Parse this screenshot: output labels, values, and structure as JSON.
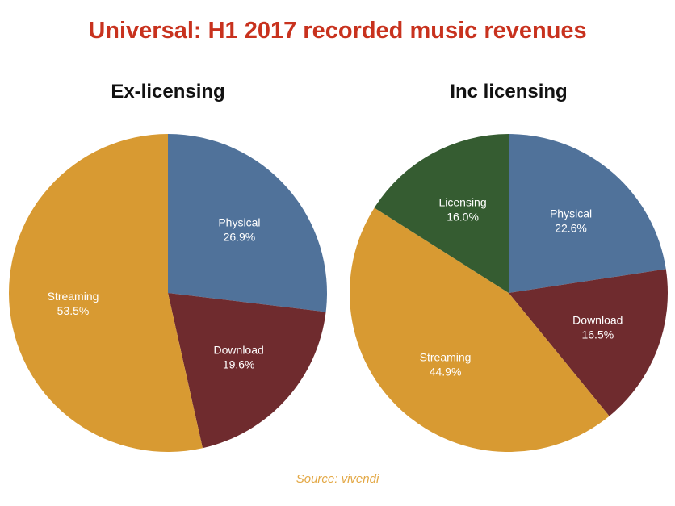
{
  "title": "Universal: H1 2017 recorded music revenues",
  "source": "Source: vivendi",
  "colors": {
    "title": "#c8321e",
    "source": "#e3a845",
    "Physical": "#50729a",
    "Download": "#6f2b2e",
    "Streaming": "#d89a32",
    "Licensing": "#355c31"
  },
  "chart_data": [
    {
      "type": "pie",
      "title": "Ex-licensing",
      "slices": [
        {
          "label": "Physical",
          "value": 26.9,
          "display": "26.9%"
        },
        {
          "label": "Download",
          "value": 19.6,
          "display": "19.6%"
        },
        {
          "label": "Streaming",
          "value": 53.5,
          "display": "53.5%"
        }
      ]
    },
    {
      "type": "pie",
      "title": "Inc licensing",
      "slices": [
        {
          "label": "Physical",
          "value": 22.6,
          "display": "22.6%"
        },
        {
          "label": "Download",
          "value": 16.5,
          "display": "16.5%"
        },
        {
          "label": "Streaming",
          "value": 44.9,
          "display": "44.9%"
        },
        {
          "label": "Licensing",
          "value": 16.0,
          "display": "16.0%"
        }
      ]
    }
  ]
}
